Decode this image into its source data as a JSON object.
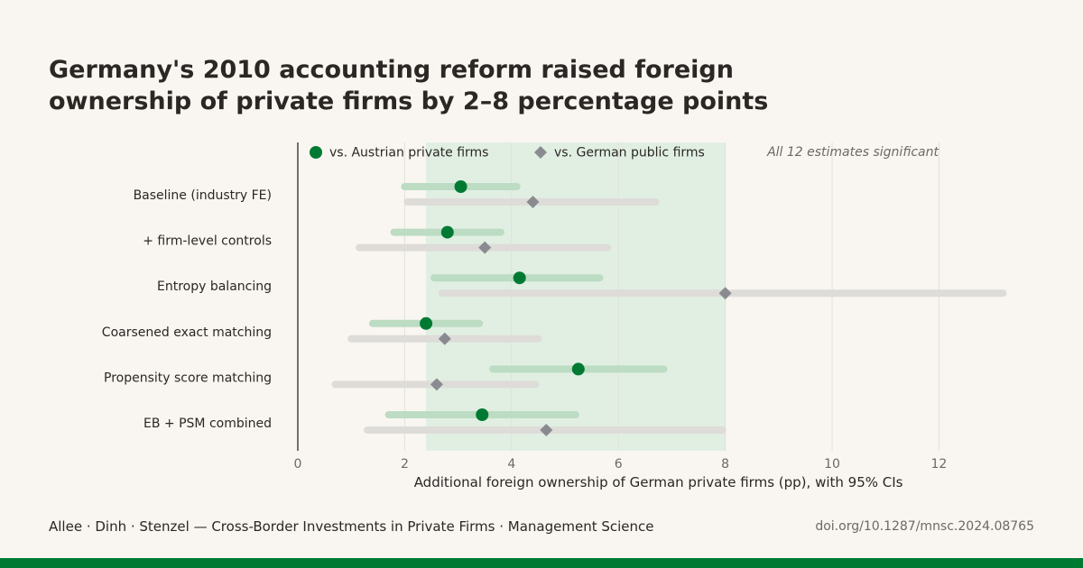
{
  "title": "Germany's 2010 accounting reform raised foreign ownership of private firms by 2–8 percentage points",
  "footer": {
    "citation": "Allee · Dinh · Stenzel — Cross-Border Investments in Private Firms · Management Science",
    "doi": "doi.org/10.1287/mnsc.2024.08765"
  },
  "colors": {
    "accent": "#007a33",
    "accent_ci": "#bcdcc3",
    "band": "#e1efe3",
    "gray_marker": "#8a8b91",
    "gray_ci": "#dedcd8",
    "background": "#f9f6f1"
  },
  "chart_data": {
    "type": "scatter",
    "subtype": "dot-and-whisker",
    "xlabel": "Additional foreign ownership of German private firms (pp), with 95% CIs",
    "xlim": [
      0,
      13.5
    ],
    "xticks": [
      0,
      2,
      4,
      6,
      8,
      10,
      12
    ],
    "x_tick_labels": [
      "0",
      "2",
      "4",
      "6",
      "8",
      "10",
      "12"
    ],
    "grid": true,
    "highlight_band": [
      2.4,
      8.0
    ],
    "annotation": "All 12 estimates significant",
    "legend_placement": "top",
    "categories": [
      "Baseline (industry FE)",
      "+ firm-level controls",
      "Entropy balancing",
      "Coarsened exact matching",
      "Propensity score matching",
      "EB + PSM combined"
    ],
    "series": [
      {
        "name": "vs. Austrian private firms",
        "marker": "circle",
        "estimates": [
          3.05,
          2.8,
          4.15,
          2.4,
          5.25,
          3.45
        ],
        "ci_low": [
          2.0,
          1.8,
          2.55,
          1.4,
          3.65,
          1.7
        ],
        "ci_high": [
          4.1,
          3.8,
          5.65,
          3.4,
          6.85,
          5.2
        ]
      },
      {
        "name": "vs. German public firms",
        "marker": "diamond",
        "estimates": [
          4.4,
          3.5,
          8.0,
          2.75,
          2.6,
          4.65
        ],
        "ci_low": [
          2.05,
          1.15,
          2.7,
          1.0,
          0.7,
          1.3
        ],
        "ci_high": [
          6.7,
          5.8,
          13.2,
          4.5,
          4.45,
          7.95
        ]
      }
    ]
  }
}
